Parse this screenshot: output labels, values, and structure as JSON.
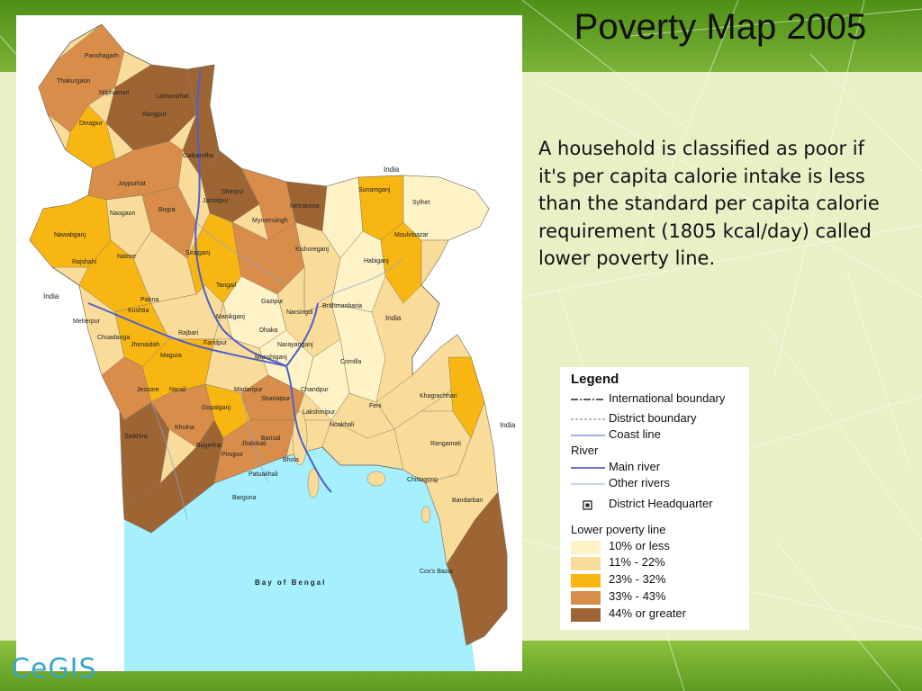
{
  "slide": {
    "title": "Poverty Map 2005",
    "description": "A household is classified as poor if it's per capita calorie intake is less than the standard per capita calorie requirement (1805 kcal/day) called lower poverty line.",
    "logo_text": "CeGIS"
  },
  "map": {
    "country_labels": [
      "India",
      "India",
      "India",
      "India"
    ],
    "sea_label": "Bay of Bengal",
    "district_labels": [
      "Panchagarh",
      "Thakurgaon",
      "Nilphamari",
      "Lalmonirhat",
      "Dinajpur",
      "Rangpur",
      "Gaibandha",
      "Joypurhat",
      "Naogaon",
      "Bogra",
      "Jamalpur",
      "Sherpur",
      "Netrakona",
      "Sunamganj",
      "Sylhet",
      "Nawabganj",
      "Rajshahi",
      "Natore",
      "Sirajganj",
      "Mymensingh",
      "Kishoreganj",
      "Moulvibazar",
      "Habiganj",
      "Pabna",
      "Tangail",
      "Gazipur",
      "Brahmanbaria",
      "Kushtia",
      "Meherpur",
      "Manikganj",
      "Narsingdi",
      "Chuadanga",
      "Jhenaidah",
      "Rajbari",
      "Dhaka",
      "Narayanganj",
      "Magura",
      "Faridpur",
      "Munshiganj",
      "Comilla",
      "Jessore",
      "Narail",
      "Madaripur",
      "Shariatpur",
      "Chandpur",
      "Gopalganj",
      "Lakshmipur",
      "Feni",
      "Khagrachhari",
      "Satkhira",
      "Khulna",
      "Bagerhat",
      "Pirojpur",
      "Barisal",
      "Noakhali",
      "Rangamati",
      "Jhalokati",
      "Patuakhali",
      "Bhola",
      "Chittagong",
      "Barguna",
      "Bandarban",
      "Cox's Bazar"
    ]
  },
  "legend": {
    "title": "Legend",
    "items": [
      {
        "label": "International boundary",
        "style": "intl"
      },
      {
        "label": "District boundary",
        "style": "district"
      },
      {
        "label": "Coast  line",
        "style": "coast"
      }
    ],
    "river_heading": "River",
    "rivers": [
      {
        "label": "Main river",
        "style": "main"
      },
      {
        "label": "Other rivers",
        "style": "other"
      }
    ],
    "hq_label": "District Headquarter",
    "poverty_heading": "Lower poverty line",
    "classes": [
      {
        "label": "10% or less",
        "color": "#fdf3c6"
      },
      {
        "label": "11% - 22%",
        "color": "#f9dc9a"
      },
      {
        "label": "23% - 32%",
        "color": "#f7b612"
      },
      {
        "label": "33% - 43%",
        "color": "#d98d4a"
      },
      {
        "label": "44% or greater",
        "color": "#9e6534"
      }
    ]
  },
  "colors": {
    "sea": "#a6efff",
    "river": "#4f5fc7",
    "background_top": "#5d9a1f",
    "background_mid": "#e9f1c9"
  }
}
